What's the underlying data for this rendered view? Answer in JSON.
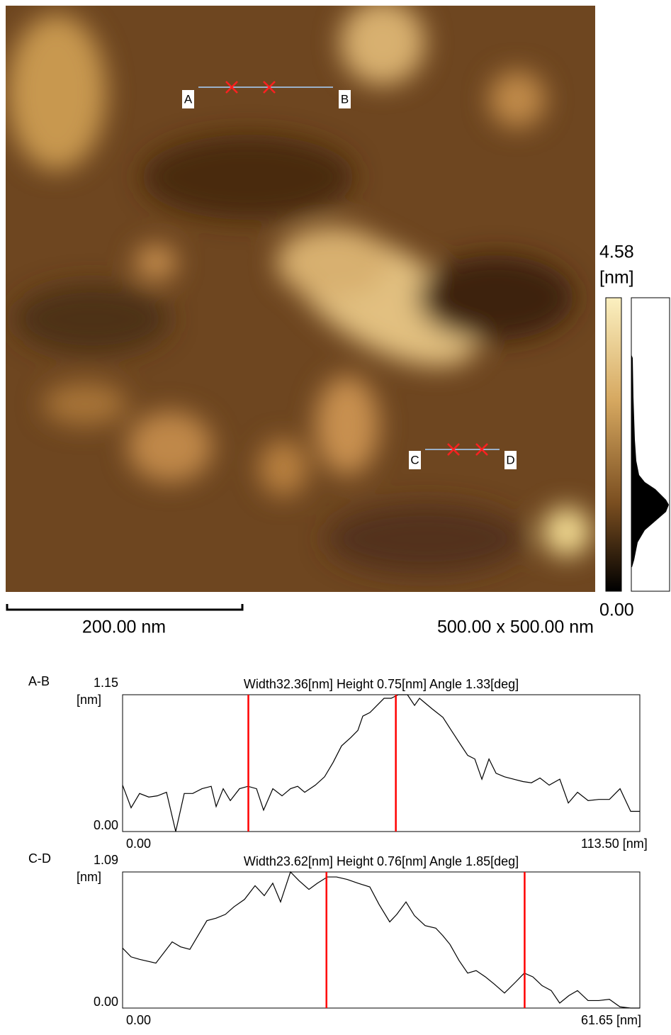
{
  "image": {
    "markers": [
      "A",
      "B",
      "C",
      "D"
    ],
    "scale_bar": "200.00 nm",
    "size": "500.00 x 500.00 nm",
    "color_max": "4.58",
    "color_unit": "[nm]",
    "color_min": "0.00"
  },
  "chart_data": [
    {
      "type": "line",
      "label": "A-B",
      "title": "Width32.36[nm] Height 0.75[nm] Angle 1.33[deg]",
      "y_label": "[nm]",
      "color": "#000000",
      "cursor_color": "#ff0000",
      "cursors": [
        27.6,
        59.96
      ],
      "xlim": [
        0,
        113.5
      ],
      "ylim": [
        0,
        1.15
      ],
      "xticks": [
        {
          "value": 0,
          "label": "0.00"
        },
        {
          "value": 113.5,
          "label": "113.50 [nm]"
        }
      ],
      "yticks": [
        {
          "value": 0,
          "label": "0.00"
        },
        {
          "value": 1.15,
          "label": "1.15"
        }
      ],
      "x": [
        0,
        1.87,
        3.73,
        5.75,
        7.62,
        9.64,
        11.66,
        13.53,
        15.39,
        17.42,
        19.44,
        20.53,
        22.08,
        23.64,
        25.66,
        27.52,
        29.39,
        30.94,
        32.97,
        34.99,
        36.85,
        38.41,
        39.96,
        42.3,
        44.32,
        46.18,
        48.05,
        50.07,
        51.63,
        52.71,
        54.27,
        55.83,
        57.38,
        58.94,
        60.49,
        62.51,
        64.07,
        65.16,
        66.4,
        67.96,
        70.29,
        72.31,
        74.18,
        75.73,
        77.29,
        78.84,
        80.4,
        81.95,
        83.82,
        85.84,
        87.86,
        89.72,
        91.59,
        93.61,
        95.94,
        97.81,
        99.83,
        102.16,
        104.5,
        106.83,
        109.16,
        111.49,
        113.5
      ],
      "values": [
        0.39,
        0.2,
        0.32,
        0.29,
        0.3,
        0.33,
        0,
        0.32,
        0.32,
        0.36,
        0.38,
        0.21,
        0.36,
        0.26,
        0.36,
        0.38,
        0.36,
        0.18,
        0.36,
        0.3,
        0.36,
        0.38,
        0.33,
        0.39,
        0.46,
        0.58,
        0.72,
        0.79,
        0.85,
        0.97,
        1.0,
        1.06,
        1.12,
        1.12,
        1.15,
        1.15,
        1.06,
        1.12,
        1.08,
        1.03,
        0.96,
        0.84,
        0.73,
        0.64,
        0.61,
        0.44,
        0.61,
        0.49,
        0.46,
        0.44,
        0.42,
        0.41,
        0.45,
        0.39,
        0.44,
        0.24,
        0.33,
        0.26,
        0.27,
        0.27,
        0.36,
        0.17,
        0.17
      ]
    },
    {
      "type": "line",
      "label": "C-D",
      "title": "Width23.62[nm] Height 0.76[nm] Angle 1.85[deg]",
      "y_label": "[nm]",
      "color": "#000000",
      "cursor_color": "#ff0000",
      "cursors": [
        24.3,
        47.92
      ],
      "xlim": [
        0,
        61.65
      ],
      "ylim": [
        0,
        1.09
      ],
      "xticks": [
        {
          "value": 0,
          "label": "0.00"
        },
        {
          "value": 61.65,
          "label": "61.65 [nm]"
        }
      ],
      "yticks": [
        {
          "value": 0,
          "label": "0.00"
        },
        {
          "value": 1.09,
          "label": "1.09"
        }
      ],
      "x": [
        0,
        1.01,
        2.03,
        3.97,
        5.91,
        6.92,
        8.02,
        10.05,
        11.15,
        12.25,
        13.26,
        14.53,
        15.79,
        16.89,
        17.9,
        18.83,
        20.01,
        21.03,
        22.21,
        23.22,
        24.41,
        25.5,
        26.77,
        28.04,
        29.47,
        30.57,
        31.84,
        32.68,
        33.78,
        34.79,
        36.06,
        37.33,
        38.17,
        39.02,
        40.11,
        41.13,
        42.14,
        43.24,
        44.34,
        45.52,
        46.87,
        47.88,
        48.9,
        49.99,
        51.09,
        52.1,
        53.2,
        54.22,
        55.48,
        56.75,
        58.02,
        59.28,
        60.55,
        61.65
      ],
      "values": [
        0.48,
        0.41,
        0.39,
        0.36,
        0.53,
        0.49,
        0.47,
        0.7,
        0.72,
        0.75,
        0.81,
        0.87,
        0.98,
        0.9,
        1.0,
        0.85,
        1.09,
        1.02,
        0.95,
        1.0,
        1.05,
        1.05,
        1.03,
        1.0,
        0.97,
        0.83,
        0.69,
        0.75,
        0.85,
        0.74,
        0.66,
        0.64,
        0.58,
        0.51,
        0.38,
        0.28,
        0.3,
        0.25,
        0.19,
        0.12,
        0.21,
        0.28,
        0.25,
        0.18,
        0.14,
        0.04,
        0.1,
        0.14,
        0.06,
        0.06,
        0.07,
        0.01,
        0,
        0
      ]
    }
  ]
}
